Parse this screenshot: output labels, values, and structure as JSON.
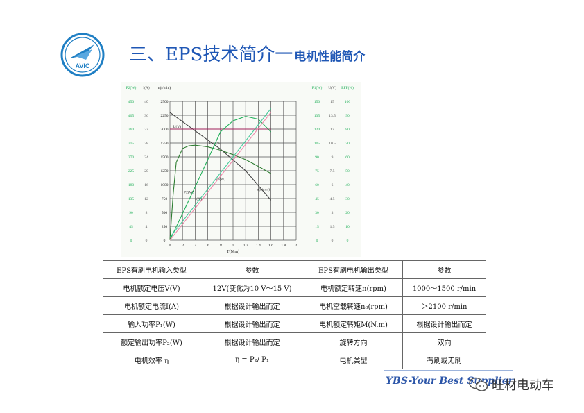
{
  "logo": {
    "text": "AVIC",
    "color": "#1f7fc4"
  },
  "title": {
    "main": "三、EPS技术简介一",
    "sub": "电机性能简介",
    "color": "#1f57b5"
  },
  "chart_data": {
    "type": "line",
    "xlabel": "T(N.m)",
    "x_ticks": [
      "0",
      ".2",
      ".4",
      ".6",
      ".8",
      "1",
      "1.2",
      "1.4",
      "1.6",
      "1.8",
      "2"
    ],
    "xlim": [
      0,
      2
    ],
    "ylim": [
      0,
      2500
    ],
    "left_axes": [
      {
        "label": "P2(W)",
        "color": "#22b05a",
        "ticks": [
          "0",
          "45",
          "90",
          "135",
          "180",
          "225",
          "270",
          "315",
          "360",
          "405",
          "450"
        ]
      },
      {
        "label": "I(A)",
        "color": "#555555",
        "ticks": [
          "0",
          "4",
          "8",
          "12",
          "16",
          "20",
          "24",
          "28",
          "32",
          "36",
          "40"
        ]
      },
      {
        "label": "n(r/min)",
        "color": "#111111",
        "ticks": [
          "0",
          "250",
          "500",
          "750",
          "1000",
          "1250",
          "1500",
          "1750",
          "2000",
          "2250",
          "2500"
        ]
      }
    ],
    "right_axes": [
      {
        "label": "P1(W)",
        "color": "#22b05a",
        "ticks": [
          "0",
          "15",
          "30",
          "45",
          "60",
          "75",
          "90",
          "105",
          "120",
          "135",
          "150"
        ]
      },
      {
        "label": "U(V)",
        "color": "#555555",
        "ticks": [
          "0",
          "1.5",
          "3",
          "4.5",
          "6",
          "7.5",
          "9",
          "10.5",
          "12",
          "13.5",
          "15"
        ]
      },
      {
        "label": "EFF(%)",
        "color": "#22b05a",
        "ticks": [
          "0",
          "10",
          "20",
          "30",
          "40",
          "50",
          "60",
          "70",
          "80",
          "90",
          "100"
        ]
      }
    ],
    "series": [
      {
        "name": "n(r/min)",
        "color": "#444444",
        "x": [
          0,
          0.4,
          0.8,
          1.2,
          1.6
        ],
        "y": [
          2300,
          1970,
          1640,
          1250,
          720
        ]
      },
      {
        "name": "U(V)",
        "color": "#a0205a",
        "x": [
          0,
          1.6
        ],
        "y": [
          2000,
          2000
        ]
      },
      {
        "name": "EFF(%)",
        "color": "#2e7d32",
        "x": [
          0,
          0.05,
          0.1,
          0.2,
          0.3,
          0.4,
          0.6,
          0.8,
          1.0,
          1.2,
          1.4,
          1.6
        ],
        "y": [
          0,
          800,
          1400,
          1650,
          1700,
          1710,
          1680,
          1620,
          1540,
          1450,
          1330,
          1200
        ]
      },
      {
        "name": "P2(W)",
        "color": "#22b05a",
        "x": [
          0,
          0.2,
          0.4,
          0.6,
          0.8,
          1.0,
          1.2,
          1.4,
          1.6
        ],
        "y": [
          0,
          480,
          960,
          1450,
          1950,
          2150,
          2230,
          2180,
          1950
        ]
      },
      {
        "name": "P1(W)",
        "color": "#46c89a",
        "x": [
          0,
          1.6
        ],
        "y": [
          50,
          2370
        ]
      },
      {
        "name": "I(A)",
        "color": "#ee88aa",
        "x": [
          0,
          1.6
        ],
        "y": [
          0,
          2300
        ]
      }
    ],
    "annotations": [
      {
        "text": "U(V)",
        "x": 0.05,
        "y": 2000
      },
      {
        "text": "EFF(%)",
        "x": 0.62,
        "y": 1700
      },
      {
        "text": "n(r/min)",
        "x": 1.38,
        "y": 870
      },
      {
        "text": "P2(W)",
        "x": 0.22,
        "y": 820
      },
      {
        "text": "I(A)",
        "x": 0.4,
        "y": 700
      },
      {
        "text": "P1(W)",
        "x": 0.72,
        "y": 1050
      }
    ]
  },
  "table": {
    "rows": [
      [
        "EPS有刷电机输入类型",
        "参数",
        "EPS有刷电机输出类型",
        "参数"
      ],
      [
        "电机额定电压V(V)",
        "12V(变化为10 V～15 V)",
        "电机额定转速n(rpm)",
        "1000～1500 r/min"
      ],
      [
        "电机额定电流I(A)",
        "根据设计输出而定",
        "电机空载转速n₀(rpm)",
        "＞2100 r/min"
      ],
      [
        "输入功率P₁(W)",
        "根据设计输出而定",
        "电机额定转矩M(N.m)",
        "根据设计输出而定"
      ],
      [
        "额定输出功率P₂(W)",
        "根据设计输出而定",
        "旋转方向",
        "双向"
      ],
      [
        "电机效率 η",
        "η = P₂/ P₁",
        "电机类型",
        "有刷或无刷"
      ]
    ]
  },
  "footer": {
    "text": "YBS-Your Best Supplier",
    "color": "#2b55a8"
  },
  "watermark": {
    "text": "旺材电动车"
  }
}
